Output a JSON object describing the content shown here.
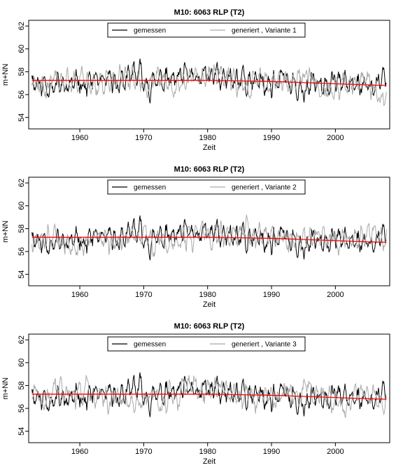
{
  "chart_data": [
    {
      "type": "line",
      "title": "M10: 6063 RLP (T2)",
      "xlabel": "Zeit",
      "ylabel": "m+NN",
      "xlim": [
        1952,
        2008.5
      ],
      "ylim": [
        53,
        62.5
      ],
      "x_ticks": [
        "1960",
        "1970",
        "1980",
        "1990",
        "2000"
      ],
      "y_ticks": [
        "54",
        "56",
        "58",
        "60",
        "62"
      ],
      "grid": false,
      "legend_position": "top",
      "series": [
        {
          "name": "gemessen",
          "color": "#000000",
          "seed": 11,
          "x": [
            1952.5,
            1955,
            1960,
            1965,
            1970,
            1975,
            1980,
            1985,
            1990,
            1995,
            2000,
            2005,
            2008
          ],
          "y": [
            57.5,
            57.0,
            57.3,
            57.0,
            57.6,
            56.9,
            57.4,
            57.2,
            57.1,
            57.0,
            57.1,
            56.8,
            56.9
          ]
        },
        {
          "name": "generiert , Variante 1",
          "color": "#aaaaaa",
          "seed": 101,
          "x": [
            1952.5,
            1955,
            1960,
            1965,
            1970,
            1975,
            1980,
            1985,
            1990,
            1995,
            2000,
            2005,
            2008
          ],
          "y": [
            57.3,
            57.2,
            57.0,
            57.4,
            57.1,
            57.2,
            57.5,
            57.3,
            57.0,
            57.2,
            57.0,
            56.9,
            56.7
          ]
        },
        {
          "name": "",
          "color": "#ff0000",
          "trend": true,
          "x": [
            1952.5,
            1960,
            1970,
            1980,
            1985,
            1990,
            1995,
            2000,
            2005,
            2008
          ],
          "y": [
            57.25,
            57.25,
            57.25,
            57.25,
            57.2,
            57.15,
            57.05,
            56.95,
            56.85,
            56.8
          ]
        }
      ]
    },
    {
      "type": "line",
      "title": "M10: 6063 RLP (T2)",
      "xlabel": "Zeit",
      "ylabel": "m+NN",
      "xlim": [
        1952,
        2008.5
      ],
      "ylim": [
        53,
        62.5
      ],
      "x_ticks": [
        "1960",
        "1970",
        "1980",
        "1990",
        "2000"
      ],
      "y_ticks": [
        "54",
        "56",
        "58",
        "60",
        "62"
      ],
      "grid": false,
      "legend_position": "top",
      "series": [
        {
          "name": "gemessen",
          "color": "#000000",
          "seed": 11,
          "x": [
            1952.5,
            1955,
            1960,
            1965,
            1970,
            1975,
            1980,
            1985,
            1990,
            1995,
            2000,
            2005,
            2008
          ],
          "y": [
            57.5,
            57.0,
            57.3,
            57.0,
            57.6,
            56.9,
            57.4,
            57.2,
            57.1,
            57.0,
            57.1,
            56.8,
            56.9
          ]
        },
        {
          "name": "generiert , Variante 2",
          "color": "#aaaaaa",
          "seed": 202,
          "x": [
            1952.5,
            1955,
            1960,
            1965,
            1970,
            1975,
            1980,
            1985,
            1990,
            1995,
            2000,
            2005,
            2008
          ],
          "y": [
            57.2,
            57.4,
            57.3,
            57.1,
            57.3,
            57.0,
            57.2,
            57.1,
            57.0,
            57.1,
            57.0,
            57.0,
            56.9
          ]
        },
        {
          "name": "",
          "color": "#ff0000",
          "trend": true,
          "x": [
            1952.5,
            1960,
            1970,
            1980,
            1985,
            1990,
            1995,
            2000,
            2005,
            2008
          ],
          "y": [
            57.25,
            57.25,
            57.25,
            57.25,
            57.2,
            57.15,
            57.05,
            56.95,
            56.85,
            56.8
          ]
        }
      ]
    },
    {
      "type": "line",
      "title": "M10: 6063 RLP (T2)",
      "xlabel": "Zeit",
      "ylabel": "m+NN",
      "xlim": [
        1952,
        2008.5
      ],
      "ylim": [
        53,
        62.5
      ],
      "x_ticks": [
        "1960",
        "1970",
        "1980",
        "1990",
        "2000"
      ],
      "y_ticks": [
        "54",
        "56",
        "58",
        "60",
        "62"
      ],
      "grid": false,
      "legend_position": "top",
      "series": [
        {
          "name": "gemessen",
          "color": "#000000",
          "seed": 11,
          "x": [
            1952.5,
            1955,
            1960,
            1965,
            1970,
            1975,
            1980,
            1985,
            1990,
            1995,
            2000,
            2005,
            2008
          ],
          "y": [
            57.5,
            57.0,
            57.3,
            57.0,
            57.6,
            56.9,
            57.4,
            57.2,
            57.1,
            57.0,
            57.1,
            56.8,
            56.9
          ]
        },
        {
          "name": "generiert , Variante 3",
          "color": "#aaaaaa",
          "seed": 303,
          "x": [
            1952.5,
            1955,
            1960,
            1965,
            1970,
            1975,
            1980,
            1985,
            1990,
            1995,
            2000,
            2005,
            2008
          ],
          "y": [
            57.4,
            57.1,
            57.5,
            57.2,
            57.0,
            57.3,
            57.6,
            57.1,
            57.2,
            57.0,
            56.9,
            57.0,
            56.8
          ]
        },
        {
          "name": "",
          "color": "#ff0000",
          "trend": true,
          "x": [
            1952.5,
            1960,
            1970,
            1980,
            1985,
            1990,
            1995,
            2000,
            2005,
            2008
          ],
          "y": [
            57.25,
            57.25,
            57.25,
            57.25,
            57.2,
            57.15,
            57.05,
            56.95,
            56.85,
            56.8
          ]
        }
      ]
    }
  ]
}
